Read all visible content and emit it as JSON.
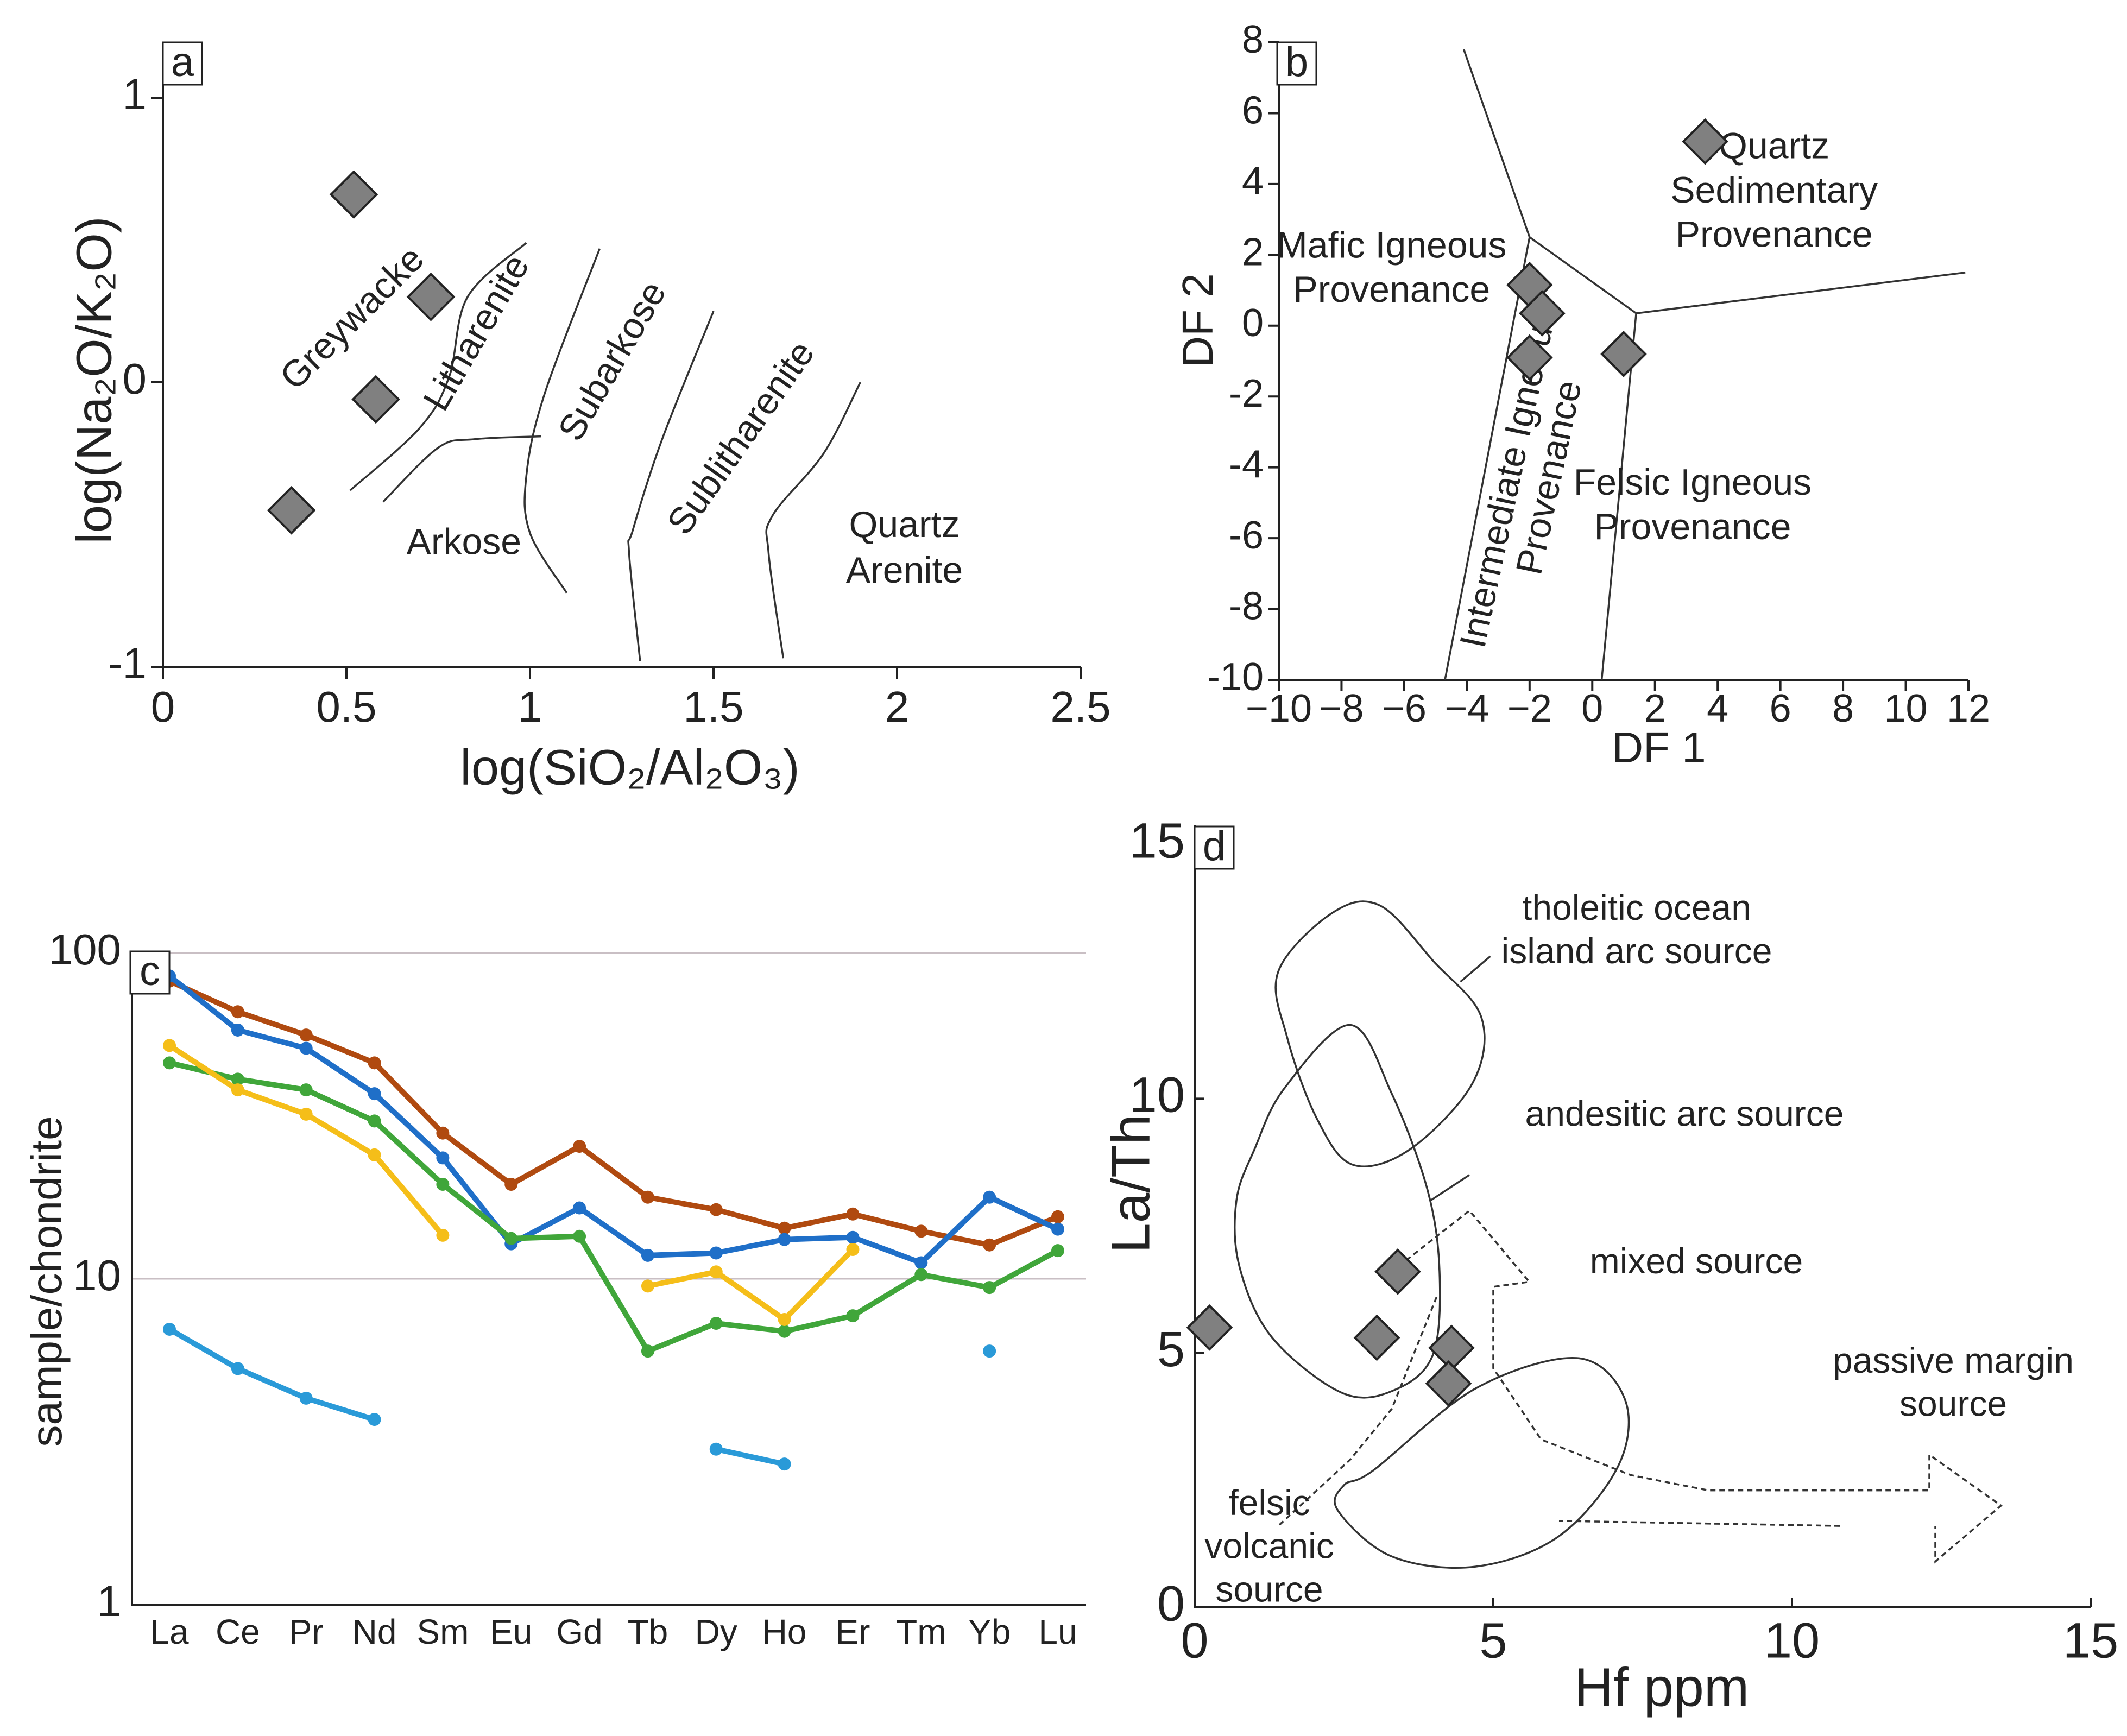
{
  "figure": {
    "panels": [
      "a",
      "b",
      "c",
      "d"
    ]
  },
  "chart_data": [
    {
      "id": "a",
      "panel_label": "a",
      "type": "scatter",
      "xlabel": "log(SiO₂/Al₂O₃)",
      "ylabel": "log(Na₂O/K₂O)",
      "xlim": [
        0,
        2.5
      ],
      "ylim": [
        -1,
        1
      ],
      "xticks": [
        0,
        0.5,
        1,
        1.5,
        2,
        2.5
      ],
      "yticks": [
        -1,
        0,
        1
      ],
      "xtick_labels": [
        "0",
        "0.5",
        "1",
        "1.5",
        "2",
        "2.5"
      ],
      "ytick_labels": [
        "-1",
        "0",
        "1"
      ],
      "marker": "diamond",
      "marker_color": "#808080",
      "points": [
        {
          "x": 0.52,
          "y": 0.66
        },
        {
          "x": 0.73,
          "y": 0.3
        },
        {
          "x": 0.58,
          "y": -0.06
        },
        {
          "x": 0.35,
          "y": -0.45
        }
      ],
      "boundaries": [
        [
          [
            0.51,
            -0.38
          ],
          [
            0.7,
            -0.16
          ],
          [
            0.78,
            0.02
          ],
          [
            0.83,
            0.3
          ],
          [
            0.99,
            0.49
          ]
        ],
        [
          [
            0.6,
            -0.42
          ],
          [
            0.75,
            -0.23
          ],
          [
            0.85,
            -0.2
          ],
          [
            1.03,
            -0.19
          ]
        ],
        [
          [
            1.1,
            -0.74
          ],
          [
            1.0,
            -0.53
          ],
          [
            0.99,
            -0.33
          ],
          [
            1.04,
            -0.04
          ],
          [
            1.19,
            0.47
          ]
        ],
        [
          [
            1.3,
            -0.98
          ],
          [
            1.27,
            -0.6
          ],
          [
            1.28,
            -0.52
          ],
          [
            1.36,
            -0.2
          ],
          [
            1.5,
            0.25
          ]
        ],
        [
          [
            1.69,
            -0.97
          ],
          [
            1.65,
            -0.6
          ],
          [
            1.66,
            -0.47
          ],
          [
            1.8,
            -0.25
          ],
          [
            1.9,
            0.0
          ]
        ]
      ],
      "field_labels": [
        {
          "text": "Greywacke",
          "x": 0.52,
          "y": 0.22,
          "angle": -45
        },
        {
          "text": "Litharenite",
          "x": 0.86,
          "y": 0.17,
          "angle": -60
        },
        {
          "text": "Subarkose",
          "x": 1.23,
          "y": 0.07,
          "angle": -60
        },
        {
          "text": "Sublitharenite",
          "x": 1.58,
          "y": -0.2,
          "angle": -55
        },
        {
          "text": "Arkose",
          "x": 0.82,
          "y": -0.57,
          "angle": 0
        },
        {
          "text": "Quartz",
          "x": 2.02,
          "y": -0.51,
          "angle": 0
        },
        {
          "text": "Arenite",
          "x": 2.02,
          "y": -0.67,
          "angle": 0
        }
      ]
    },
    {
      "id": "b",
      "panel_label": "b",
      "type": "scatter",
      "xlabel": "DF 1",
      "ylabel": "DF 2",
      "xlim": [
        -10,
        12
      ],
      "ylim": [
        -10,
        8
      ],
      "xticks": [
        -10,
        -8,
        -6,
        -4,
        -2,
        0,
        2,
        4,
        6,
        8,
        10,
        12
      ],
      "yticks": [
        -10,
        -8,
        -6,
        -4,
        -2,
        0,
        2,
        4,
        6,
        8
      ],
      "xtick_labels": [
        "−10",
        "−8",
        "−6",
        "−4",
        "−2",
        "0",
        "2",
        "4",
        "6",
        "8",
        "10",
        "12"
      ],
      "ytick_labels": [
        "-10",
        "-8",
        "-6",
        "-4",
        "-2",
        "0",
        "2",
        "4",
        "6",
        "8"
      ],
      "marker": "diamond",
      "marker_color": "#808080",
      "points": [
        {
          "x": 3.6,
          "y": 5.2
        },
        {
          "x": -2.0,
          "y": 1.15
        },
        {
          "x": -1.6,
          "y": 0.35
        },
        {
          "x": -2.0,
          "y": -0.9
        },
        {
          "x": 1.0,
          "y": -0.8
        }
      ],
      "boundaries": [
        [
          [
            -4.1,
            7.8
          ],
          [
            -2.0,
            2.5
          ],
          [
            -4.7,
            -10.0
          ]
        ],
        [
          [
            -2.0,
            2.5
          ],
          [
            1.4,
            0.35
          ],
          [
            0.3,
            -10.0
          ]
        ],
        [
          [
            1.4,
            0.35
          ],
          [
            11.9,
            1.5
          ]
        ]
      ],
      "field_labels": [
        {
          "text": "Quartz",
          "x": 5.8,
          "y": 5.0,
          "angle": 0
        },
        {
          "text": "Sedimentary",
          "x": 5.8,
          "y": 3.75,
          "angle": 0
        },
        {
          "text": "Provenance",
          "x": 5.8,
          "y": 2.5,
          "angle": 0
        },
        {
          "text": "Mafic Igneous",
          "x": -6.4,
          "y": 2.2,
          "angle": 0
        },
        {
          "text": "Provenance",
          "x": -6.4,
          "y": 0.95,
          "angle": 0
        },
        {
          "text": "Felsic Igneous",
          "x": 3.2,
          "y": -4.5,
          "angle": 0
        },
        {
          "text": "Provenance",
          "x": 3.2,
          "y": -5.75,
          "angle": 0
        },
        {
          "text": "Intermediate Igneous",
          "x": -2.6,
          "y": -4.3,
          "angle": -78
        },
        {
          "text": "Provenance",
          "x": -1.3,
          "y": -4.3,
          "angle": -78
        }
      ]
    },
    {
      "id": "c",
      "panel_label": "c",
      "type": "line",
      "xlabel": "",
      "ylabel": "sample/chondrite",
      "yscale": "log",
      "ylim": [
        1,
        100
      ],
      "yticks": [
        1,
        10,
        100
      ],
      "ytick_labels": [
        "1",
        "10",
        "100"
      ],
      "gridlines_y": [
        10,
        100
      ],
      "categories": [
        "La",
        "Ce",
        "Pr",
        "Nd",
        "Sm",
        "Eu",
        "Gd",
        "Tb",
        "Dy",
        "Ho",
        "Er",
        "Tm",
        "Yb",
        "Lu"
      ],
      "series": [
        {
          "color": "#b04a10",
          "values": [
            82,
            66,
            56,
            46,
            28,
            19.5,
            25.5,
            17.8,
            16.3,
            14.3,
            15.8,
            14.0,
            12.7,
            15.5
          ]
        },
        {
          "color": "#1f6fc8",
          "values": [
            85,
            58,
            51,
            37,
            23.5,
            12.8,
            16.5,
            11.8,
            12.0,
            13.2,
            13.4,
            11.2,
            17.8,
            14.2
          ]
        },
        {
          "color": "#40a63a",
          "values": [
            46,
            41,
            38,
            30.5,
            19.5,
            13.3,
            13.5,
            6.0,
            7.3,
            6.9,
            7.7,
            10.3,
            9.4,
            12.2
          ]
        },
        {
          "color": "#f5be19",
          "values": [
            52,
            38,
            32,
            24,
            13.6,
            null,
            null,
            9.5,
            10.5,
            7.5,
            12.3,
            null,
            null,
            null
          ]
        },
        {
          "color": "#2a9ad8",
          "values": [
            7.0,
            5.3,
            4.3,
            3.7,
            null,
            null,
            null,
            null,
            3.0,
            2.7,
            null,
            null,
            6.0,
            null
          ]
        }
      ]
    },
    {
      "id": "d",
      "panel_label": "d",
      "type": "scatter",
      "xlabel": "Hf ppm",
      "ylabel": "La/Th",
      "xlim": [
        0,
        15
      ],
      "ylim": [
        0,
        15
      ],
      "xticks": [
        0,
        5,
        10,
        15
      ],
      "yticks": [
        0,
        5,
        10,
        15
      ],
      "xtick_labels": [
        "0",
        "5",
        "10",
        "15"
      ],
      "ytick_labels": [
        "0",
        "5",
        "10",
        "15"
      ],
      "marker": "diamond",
      "marker_color": "#808080",
      "points": [
        {
          "x": 0.25,
          "y": 5.5
        },
        {
          "x": 3.05,
          "y": 5.3
        },
        {
          "x": 3.4,
          "y": 6.6
        },
        {
          "x": 4.3,
          "y": 5.1
        },
        {
          "x": 4.25,
          "y": 4.4
        }
      ],
      "fields": [
        {
          "name": "tholeiitic",
          "style": "solid",
          "pts": [
            [
              1.4,
              12.5
            ],
            [
              2.3,
              13.65
            ],
            [
              3.1,
              13.8
            ],
            [
              4.0,
              12.7
            ],
            [
              4.8,
              11.6
            ],
            [
              4.65,
              10.3
            ],
            [
              3.6,
              9.0
            ],
            [
              2.65,
              8.7
            ],
            [
              2.05,
              9.6
            ],
            [
              1.55,
              11.2
            ]
          ]
        },
        {
          "name": "andesitic",
          "style": "solid",
          "pts": [
            [
              1.5,
              10.2
            ],
            [
              2.6,
              11.45
            ],
            [
              3.3,
              10.1
            ],
            [
              3.9,
              8.2
            ],
            [
              4.1,
              6.6
            ],
            [
              4.0,
              5.0
            ],
            [
              3.4,
              4.3
            ],
            [
              2.5,
              4.2
            ],
            [
              1.3,
              5.3
            ],
            [
              0.75,
              6.7
            ],
            [
              0.7,
              8.0
            ],
            [
              1.0,
              9.0
            ]
          ]
        },
        {
          "name": "felsic",
          "style": "solid",
          "pts": [
            [
              3.0,
              2.7
            ],
            [
              4.7,
              4.3
            ],
            [
              6.4,
              4.9
            ],
            [
              7.2,
              4.1
            ],
            [
              7.1,
              2.8
            ],
            [
              6.1,
              1.4
            ],
            [
              4.7,
              0.8
            ],
            [
              3.3,
              1.0
            ],
            [
              2.4,
              1.9
            ],
            [
              2.5,
              2.4
            ]
          ]
        },
        {
          "name": "mixed",
          "style": "dashed",
          "pts": [
            [
              3.3,
              6.6
            ],
            [
              4.6,
              7.8
            ],
            [
              5.6,
              6.4
            ],
            [
              5.0,
              6.3
            ],
            [
              5.0,
              4.7
            ],
            [
              5.8,
              3.3
            ],
            [
              7.3,
              2.6
            ],
            [
              8.6,
              2.3
            ],
            [
              12.3,
              2.3
            ],
            [
              12.3,
              3.0
            ],
            [
              13.5,
              2.0
            ],
            [
              12.4,
              0.9
            ],
            [
              12.4,
              1.6
            ]
          ]
        },
        {
          "name": "mixed-lower",
          "style": "dashed",
          "pts": [
            [
              10.8,
              1.6
            ],
            [
              6.1,
              1.7
            ]
          ]
        },
        {
          "name": "mixed-left",
          "style": "dashed",
          "pts": [
            [
              4.05,
              6.1
            ],
            [
              3.3,
              3.9
            ],
            [
              2.6,
              2.9
            ],
            [
              1.4,
              1.6
            ]
          ]
        }
      ],
      "leaders": [
        {
          "pts": [
            [
              4.45,
              12.3
            ],
            [
              4.95,
              12.8
            ]
          ]
        },
        {
          "pts": [
            [
              3.95,
              8.0
            ],
            [
              4.6,
              8.5
            ]
          ]
        }
      ],
      "field_labels": [
        {
          "text": "tholeitic ocean",
          "x": 7.4,
          "y": 13.7,
          "anchor": "middle"
        },
        {
          "text": "island arc source",
          "x": 7.4,
          "y": 12.85,
          "anchor": "middle"
        },
        {
          "text": "andesitic arc source",
          "x": 8.2,
          "y": 9.65,
          "anchor": "middle"
        },
        {
          "text": "mixed source",
          "x": 8.4,
          "y": 6.75,
          "anchor": "middle"
        },
        {
          "text": "passive margin",
          "x": 12.7,
          "y": 4.8,
          "anchor": "middle"
        },
        {
          "text": "source",
          "x": 12.7,
          "y": 3.95,
          "anchor": "middle"
        },
        {
          "text": "felsic",
          "x": 1.25,
          "y": 2.0,
          "anchor": "middle"
        },
        {
          "text": "volcanic",
          "x": 1.25,
          "y": 1.15,
          "anchor": "middle"
        },
        {
          "text": "source",
          "x": 1.25,
          "y": 0.3,
          "anchor": "middle"
        }
      ]
    }
  ]
}
